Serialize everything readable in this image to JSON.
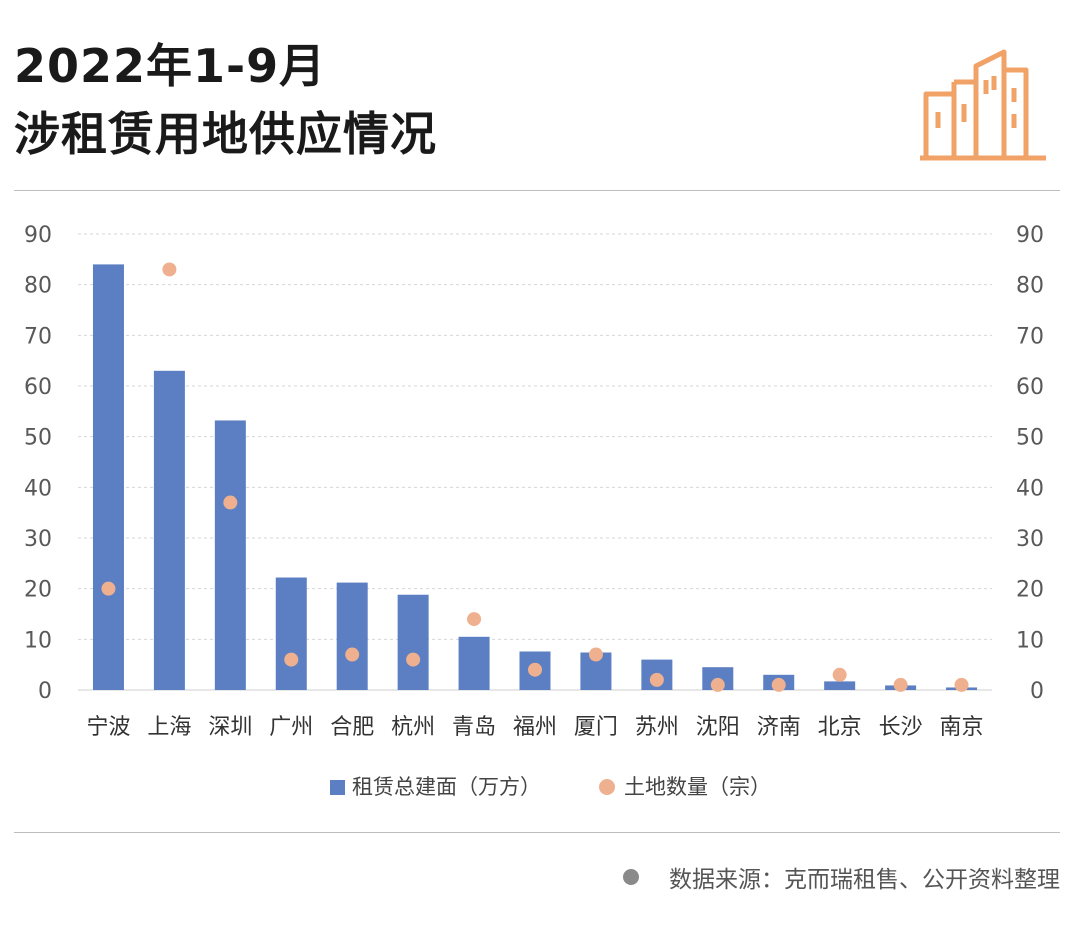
{
  "header": {
    "title_line1": "2022年1-9月",
    "title_line2": "涉租赁用地供应情况",
    "logo_icon": "building-icon",
    "accent_color": "#F0A267"
  },
  "chart_data": {
    "type": "bar",
    "title": "2022年1-9月涉租赁用地供应情况",
    "categories": [
      "宁波",
      "上海",
      "深圳",
      "广州",
      "合肥",
      "杭州",
      "青岛",
      "福州",
      "厦门",
      "苏州",
      "沈阳",
      "济南",
      "北京",
      "长沙",
      "南京"
    ],
    "series": [
      {
        "name": "租赁总建面（万方）",
        "kind": "bar",
        "axis": "left",
        "color": "#5B7FC2",
        "values": [
          84,
          63,
          53.2,
          22.2,
          21.2,
          18.8,
          10.5,
          7.6,
          7.4,
          6,
          4.5,
          3,
          1.7,
          0.9,
          0.5
        ]
      },
      {
        "name": "土地数量（宗）",
        "kind": "scatter",
        "axis": "right",
        "color": "#EEB08E",
        "values": [
          20,
          83,
          37,
          6,
          7,
          6,
          14,
          4,
          7,
          2,
          1,
          1,
          3,
          1,
          1
        ]
      }
    ],
    "y_left": {
      "min": 0,
      "max": 90,
      "ticks": [
        0,
        10,
        20,
        30,
        40,
        50,
        60,
        70,
        80,
        90
      ]
    },
    "y_right": {
      "min": 0,
      "max": 90,
      "ticks": [
        0,
        10,
        20,
        30,
        40,
        50,
        60,
        70,
        80,
        90
      ]
    },
    "grid": true,
    "legend_position": "bottom"
  },
  "footer": {
    "source": "数据来源：克而瑞租售、公开资料整理"
  }
}
